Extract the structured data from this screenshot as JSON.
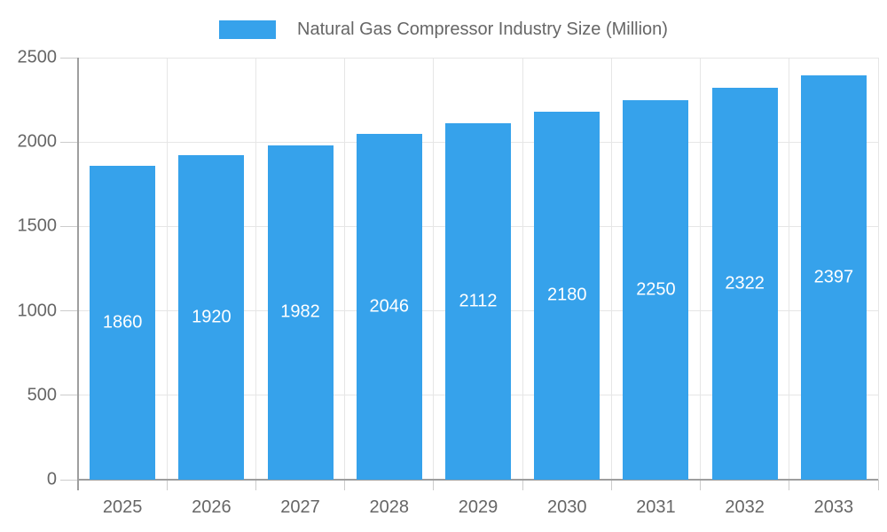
{
  "chart_data": {
    "type": "bar",
    "title": "Natural Gas Compressor Industry Size (Million)",
    "categories": [
      "2025",
      "2026",
      "2027",
      "2028",
      "2029",
      "2030",
      "2031",
      "2032",
      "2033"
    ],
    "values": [
      1860,
      1920,
      1982,
      2046,
      2112,
      2180,
      2250,
      2322,
      2397
    ],
    "value_labels": [
      "1860",
      "1920",
      "1982",
      "2046",
      "2112",
      "2180",
      "2250",
      "2322",
      "2397"
    ],
    "yticks": [
      0,
      500,
      1000,
      1500,
      2000,
      2500
    ],
    "ytick_labels": [
      "0",
      "500",
      "1000",
      "1500",
      "2000",
      "2500"
    ],
    "ylim": [
      0,
      2500
    ],
    "xlabel": "",
    "ylabel": "",
    "grid": true,
    "legend_position": "top",
    "colors": {
      "bar": "#36A2EB",
      "grid": "#e6e6e6",
      "tick": "#cccccc",
      "axis": "#9e9e9e",
      "text": "#666666",
      "value_label": "#ffffff",
      "background": "#ffffff"
    }
  }
}
